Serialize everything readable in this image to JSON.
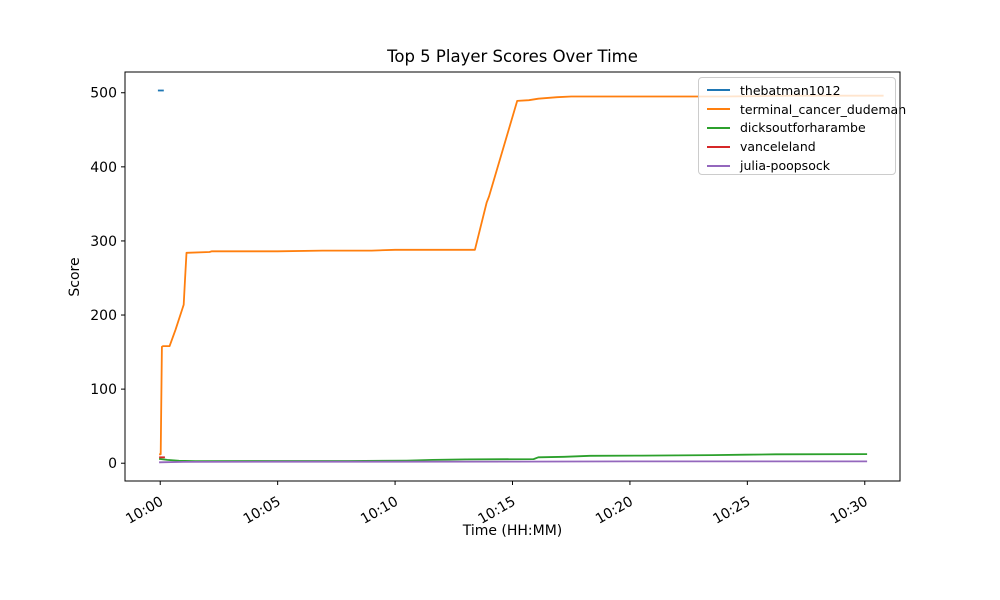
{
  "figure": {
    "background_color": "#ffffff",
    "text_color": "#000000",
    "spine_color": "#000000"
  },
  "chart_data": {
    "type": "line",
    "title": "Top 5 Player Scores Over Time",
    "xlabel": "Time (HH:MM)",
    "ylabel": "Score",
    "grid": false,
    "legend_position": "upper right",
    "x_unit": "minutes after 10:00",
    "xlim": [
      -1.5,
      31.5
    ],
    "ylim": [
      -24,
      528
    ],
    "xticks": [
      {
        "value": 0,
        "label": "10:00"
      },
      {
        "value": 5,
        "label": "10:05"
      },
      {
        "value": 10,
        "label": "10:10"
      },
      {
        "value": 15,
        "label": "10:15"
      },
      {
        "value": 20,
        "label": "10:20"
      },
      {
        "value": 25,
        "label": "10:25"
      },
      {
        "value": 30,
        "label": "10:30"
      }
    ],
    "yticks": [
      {
        "value": 0,
        "label": "0"
      },
      {
        "value": 100,
        "label": "100"
      },
      {
        "value": 200,
        "label": "200"
      },
      {
        "value": 300,
        "label": "300"
      },
      {
        "value": 400,
        "label": "400"
      },
      {
        "value": 500,
        "label": "500"
      }
    ],
    "series": [
      {
        "name": "thebatman1012",
        "color": "#1f77b4",
        "points": [
          [
            -0.1,
            503
          ],
          [
            0.15,
            503
          ]
        ]
      },
      {
        "name": "terminal_cancer_dudeman",
        "color": "#ff7f0e",
        "points": [
          [
            -0.05,
            12
          ],
          [
            0.02,
            12
          ],
          [
            0.07,
            157
          ],
          [
            0.12,
            158
          ],
          [
            0.4,
            158
          ],
          [
            0.65,
            180
          ],
          [
            0.95,
            209
          ],
          [
            1.0,
            214
          ],
          [
            1.06,
            250
          ],
          [
            1.12,
            284
          ],
          [
            2.1,
            285
          ],
          [
            2.2,
            286
          ],
          [
            5.0,
            286
          ],
          [
            6.9,
            287
          ],
          [
            9.0,
            287
          ],
          [
            10.0,
            288
          ],
          [
            13.4,
            288
          ],
          [
            13.9,
            352
          ],
          [
            14.0,
            360
          ],
          [
            15.2,
            489
          ],
          [
            15.7,
            490
          ],
          [
            16.1,
            492
          ],
          [
            16.9,
            494
          ],
          [
            17.5,
            495
          ],
          [
            20.0,
            495
          ],
          [
            24.0,
            495
          ],
          [
            27.0,
            496
          ],
          [
            30.8,
            496
          ]
        ]
      },
      {
        "name": "dicksoutforharambe",
        "color": "#2ca02c",
        "points": [
          [
            -0.05,
            6
          ],
          [
            0.3,
            4.5
          ],
          [
            0.8,
            3.2
          ],
          [
            1.5,
            2.8
          ],
          [
            8.0,
            3.0
          ],
          [
            10.5,
            3.5
          ],
          [
            11.6,
            4.5
          ],
          [
            13.0,
            5.2
          ],
          [
            15.9,
            5.5
          ],
          [
            16.1,
            8.0
          ],
          [
            17.2,
            8.6
          ],
          [
            18.3,
            10.0
          ],
          [
            20.5,
            10.3
          ],
          [
            23.5,
            11.0
          ],
          [
            24.9,
            11.5
          ],
          [
            26.2,
            12.0
          ],
          [
            30.1,
            12.3
          ]
        ]
      },
      {
        "name": "vanceleland",
        "color": "#d62728",
        "points": [
          [
            -0.05,
            8
          ],
          [
            0.2,
            8
          ]
        ]
      },
      {
        "name": "julia-poopsock",
        "color": "#9467bd",
        "points": [
          [
            -0.05,
            1.2
          ],
          [
            1.0,
            1.8
          ],
          [
            5.0,
            2.0
          ],
          [
            10.0,
            2.0
          ],
          [
            15.0,
            2.2
          ],
          [
            20.0,
            2.4
          ],
          [
            25.0,
            2.5
          ],
          [
            30.1,
            2.5
          ]
        ]
      }
    ]
  }
}
